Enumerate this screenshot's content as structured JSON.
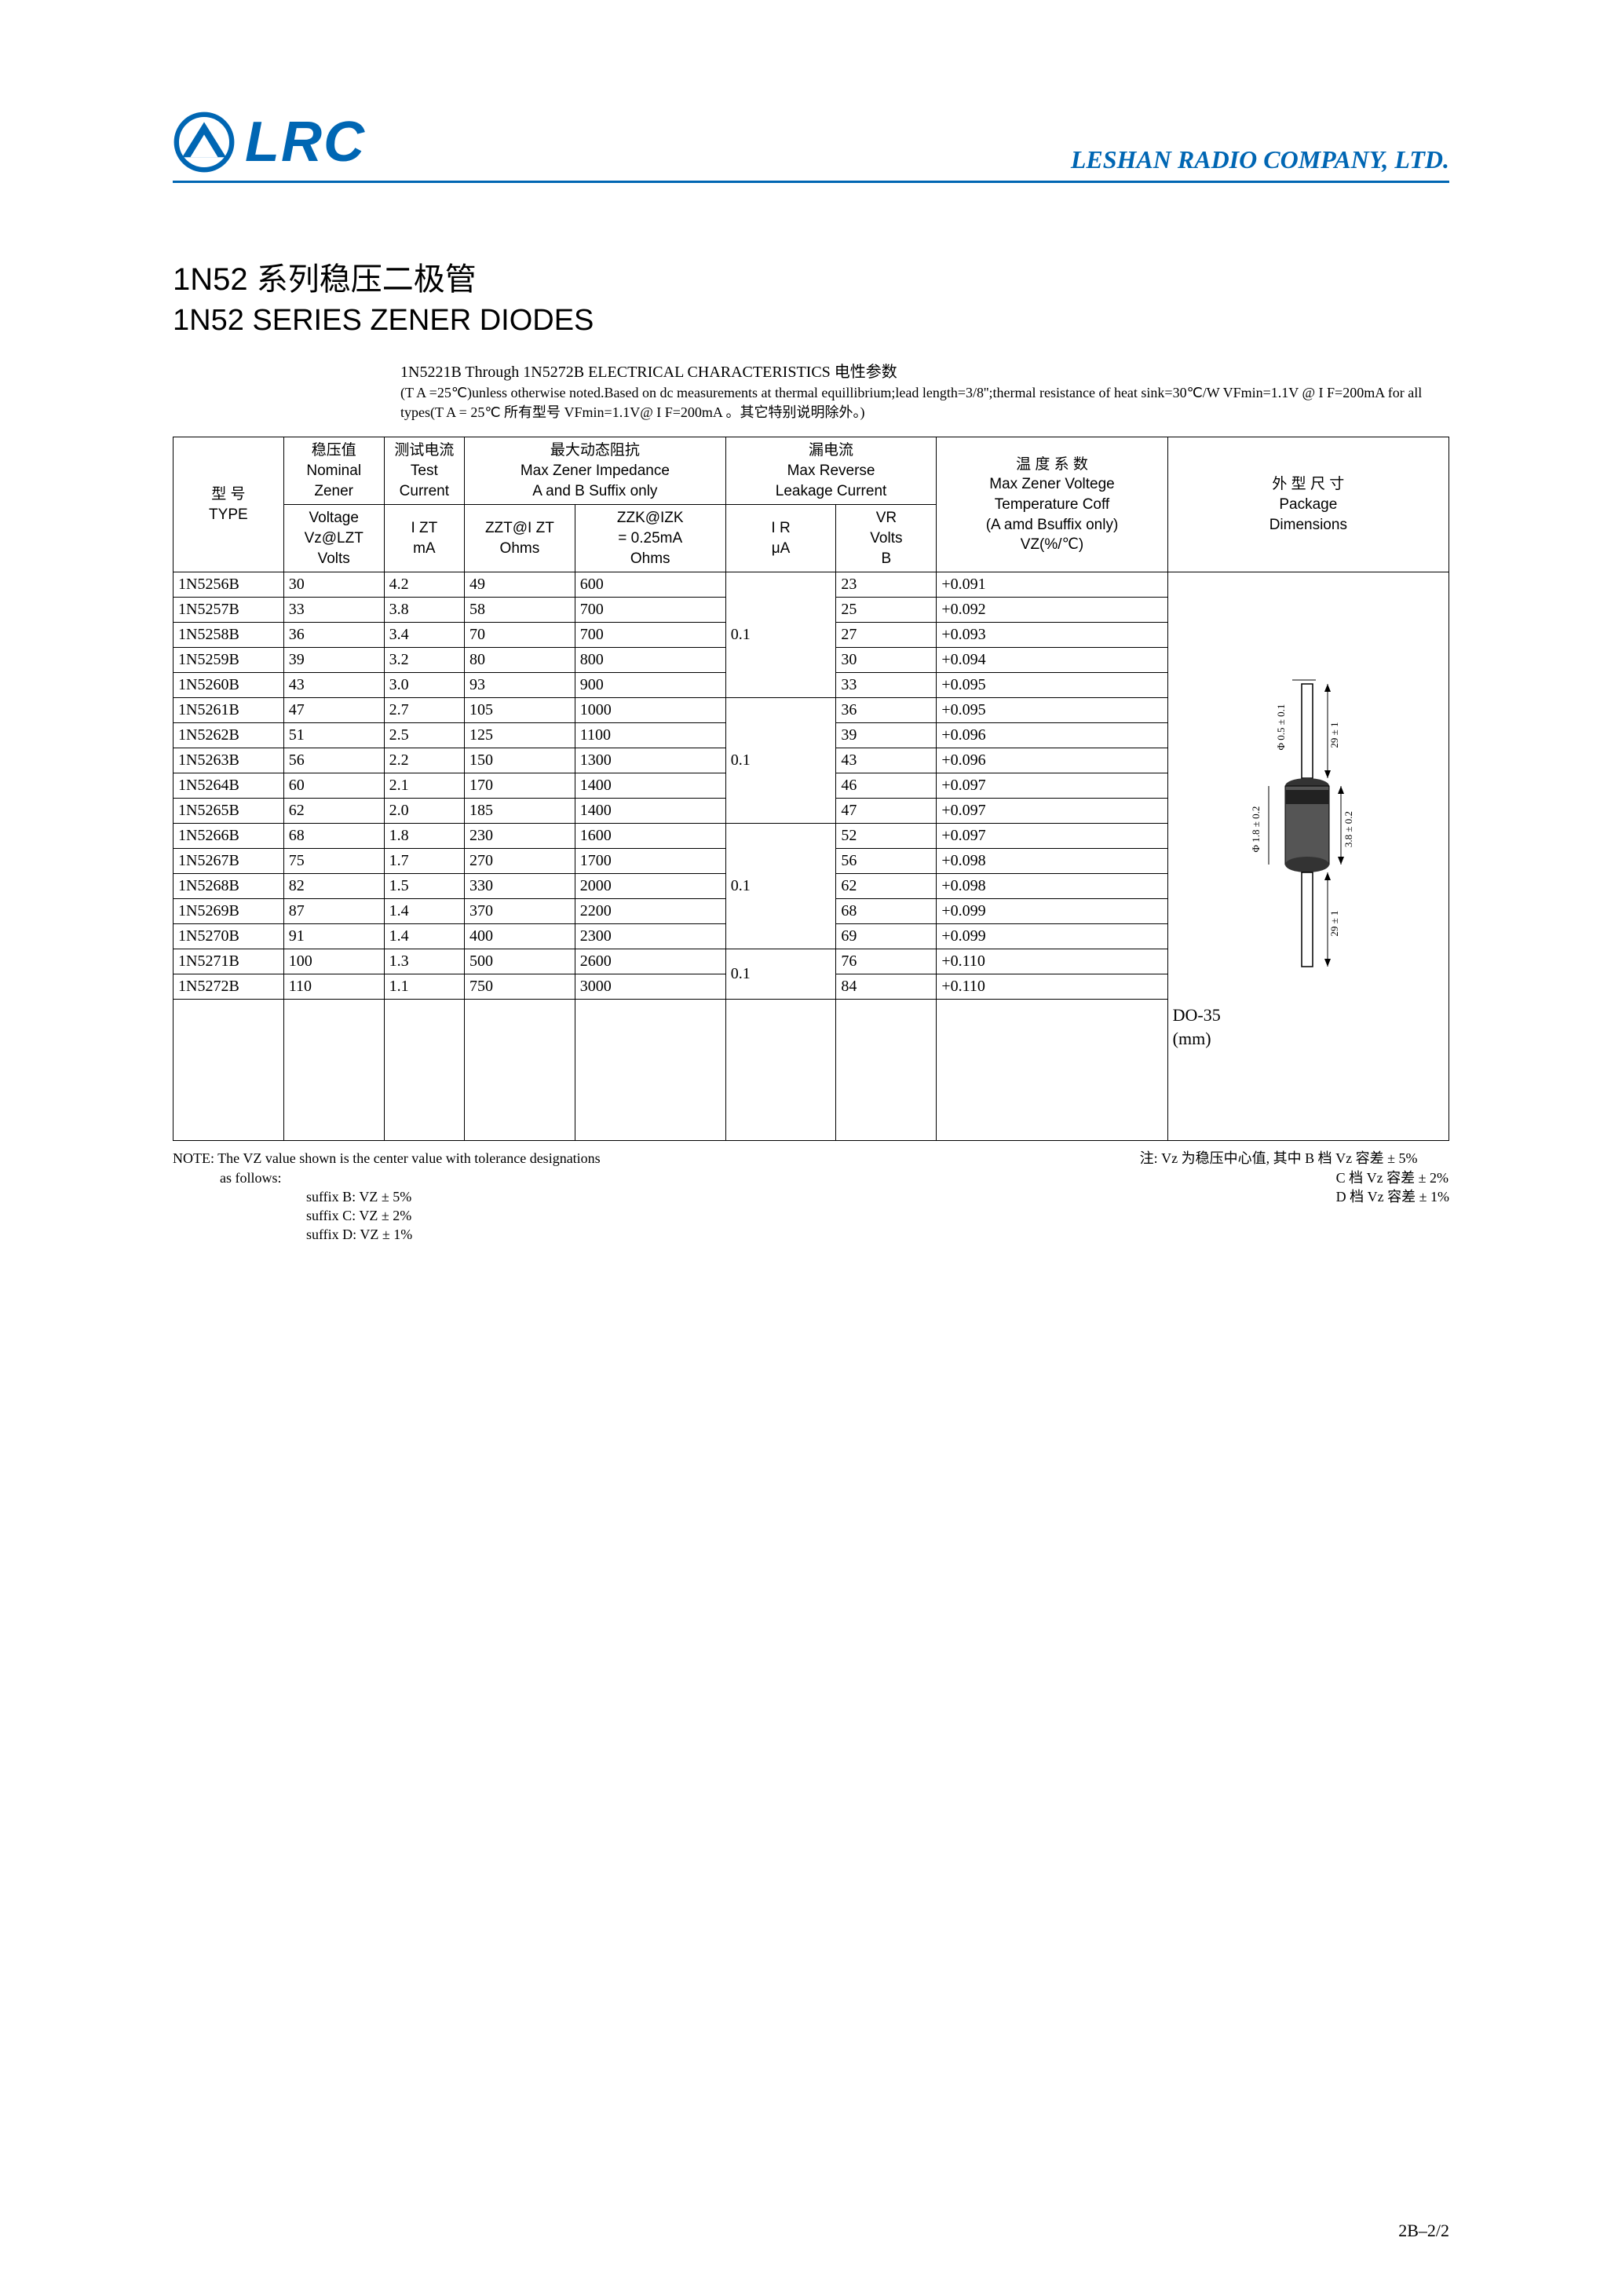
{
  "header": {
    "logo_text": "LRC",
    "company": "LESHAN RADIO COMPANY, LTD."
  },
  "titles": {
    "cn": "1N52 系列稳压二极管",
    "en": "1N52 SERIES ZENER DIODES"
  },
  "subtitle": {
    "line1": "1N5221B Through 1N5272B ELECTRICAL CHARACTERISTICS 电性参数",
    "line2": "(T A =25℃)unless otherwise noted.Based on dc measurements at thermal equillibrium;lead length=3/8'';thermal resistance of heat sink=30℃/W  VFmin=1.1V @ I F=200mA for all types(T A = 25℃ 所有型号 VFmin=1.1V@ I F=200mA 。其它特别说明除外。)"
  },
  "table": {
    "headers": {
      "type_cn": "型  号",
      "type_en": "TYPE",
      "vz_cn": "稳压值",
      "vz_en1": "Nominal",
      "vz_en2": "Zener",
      "vz_en3": "Voltage",
      "vz_sym": "Vz@LZT",
      "vz_unit": "Volts",
      "izt_cn": "测试电流",
      "izt_en1": "Test",
      "izt_en2": "Current",
      "izt_sym": "I ZT",
      "izt_unit": "mA",
      "zmax_cn": "最大动态阻抗",
      "zmax_en1": "Max Zener Impedance",
      "zmax_en2": "A and B Suffix only",
      "zzt_sym": "ZZT@I ZT",
      "zzt_unit": "Ohms",
      "zzk_sym": "ZZK@IZK",
      "zzk_eq": "= 0.25mA",
      "zzk_unit": "Ohms",
      "leak_cn": "漏电流",
      "leak_en1": "Max Reverse",
      "leak_en2": "Leakage Current",
      "ir_sym": "I R",
      "ir_unit": "μA",
      "vr_sym": "VR",
      "vr_en": "Volts",
      "vr_unit": "B",
      "tc_cn": "温 度 系 数",
      "tc_en1": "Max Zener Voltege",
      "tc_en2": "Temperature Coff",
      "tc_en3": "(A amd Bsuffix only)",
      "tc_sym": "VZ(%/℃)",
      "pkg_cn": "外 型 尺 寸",
      "pkg_en1": "Package",
      "pkg_en2": "Dimensions"
    },
    "groups": [
      {
        "ir": "0.1",
        "rows": [
          {
            "type": "1N5256B",
            "vz": "30",
            "izt": "4.2",
            "zzt": "49",
            "zzk": "600",
            "vr": "23",
            "tc": "+0.091"
          },
          {
            "type": "1N5257B",
            "vz": "33",
            "izt": "3.8",
            "zzt": "58",
            "zzk": "700",
            "vr": "25",
            "tc": "+0.092"
          },
          {
            "type": "1N5258B",
            "vz": "36",
            "izt": "3.4",
            "zzt": "70",
            "zzk": "700",
            "vr": "27",
            "tc": "+0.093"
          },
          {
            "type": "1N5259B",
            "vz": "39",
            "izt": "3.2",
            "zzt": "80",
            "zzk": "800",
            "vr": "30",
            "tc": "+0.094"
          },
          {
            "type": "1N5260B",
            "vz": "43",
            "izt": "3.0",
            "zzt": "93",
            "zzk": "900",
            "vr": "33",
            "tc": "+0.095"
          }
        ]
      },
      {
        "ir": "0.1",
        "rows": [
          {
            "type": "1N5261B",
            "vz": "47",
            "izt": "2.7",
            "zzt": "105",
            "zzk": "1000",
            "vr": "36",
            "tc": "+0.095"
          },
          {
            "type": "1N5262B",
            "vz": "51",
            "izt": "2.5",
            "zzt": "125",
            "zzk": "1100",
            "vr": "39",
            "tc": "+0.096"
          },
          {
            "type": "1N5263B",
            "vz": "56",
            "izt": "2.2",
            "zzt": "150",
            "zzk": "1300",
            "vr": "43",
            "tc": "+0.096"
          },
          {
            "type": "1N5264B",
            "vz": "60",
            "izt": "2.1",
            "zzt": "170",
            "zzk": "1400",
            "vr": "46",
            "tc": "+0.097"
          },
          {
            "type": "1N5265B",
            "vz": "62",
            "izt": "2.0",
            "zzt": "185",
            "zzk": "1400",
            "vr": "47",
            "tc": "+0.097"
          }
        ]
      },
      {
        "ir": "0.1",
        "rows": [
          {
            "type": "1N5266B",
            "vz": "68",
            "izt": "1.8",
            "zzt": "230",
            "zzk": "1600",
            "vr": "52",
            "tc": "+0.097"
          },
          {
            "type": "1N5267B",
            "vz": "75",
            "izt": "1.7",
            "zzt": "270",
            "zzk": "1700",
            "vr": "56",
            "tc": "+0.098"
          },
          {
            "type": "1N5268B",
            "vz": "82",
            "izt": "1.5",
            "zzt": "330",
            "zzk": "2000",
            "vr": "62",
            "tc": "+0.098"
          },
          {
            "type": "1N5269B",
            "vz": "87",
            "izt": "1.4",
            "zzt": "370",
            "zzk": "2200",
            "vr": "68",
            "tc": "+0.099"
          },
          {
            "type": "1N5270B",
            "vz": "91",
            "izt": "1.4",
            "zzt": "400",
            "zzk": "2300",
            "vr": "69",
            "tc": "+0.099"
          }
        ]
      },
      {
        "ir": "0.1",
        "rows": [
          {
            "type": "1N5271B",
            "vz": "100",
            "izt": "1.3",
            "zzt": "500",
            "zzk": "2600",
            "vr": "76",
            "tc": "+0.110"
          },
          {
            "type": "1N5272B",
            "vz": "110",
            "izt": "1.1",
            "zzt": "750",
            "zzk": "3000",
            "vr": "84",
            "tc": "+0.110"
          }
        ]
      }
    ],
    "package": {
      "name": "DO-35",
      "unit": "(mm)",
      "dim_lead_dia": "Φ 0.5 ± 0.1",
      "dim_lead_len": "29 ± 1",
      "dim_body_dia": "Φ 1.8 ± 0.2",
      "dim_body_len": "3.8 ± 0.2"
    }
  },
  "notes": {
    "left": {
      "l1": "NOTE: The VZ value shown is the center value with tolerance designations",
      "l2": "as  follows:",
      "l3": "suffix B:  VZ ± 5%",
      "l4": "suffix C:  VZ ± 2%",
      "l5": "suffix D:  VZ ± 1%"
    },
    "right": {
      "l1": "注:  Vz 为稳压中心值,  其中 B 档 Vz 容差 ± 5%",
      "l2": "C 档 Vz 容差 ± 2%",
      "l3": "D 档 Vz 容差 ± 1%"
    }
  },
  "page_number": "2B–2/2",
  "colors": {
    "brand": "#0066b3",
    "text": "#000000",
    "bg": "#ffffff"
  }
}
